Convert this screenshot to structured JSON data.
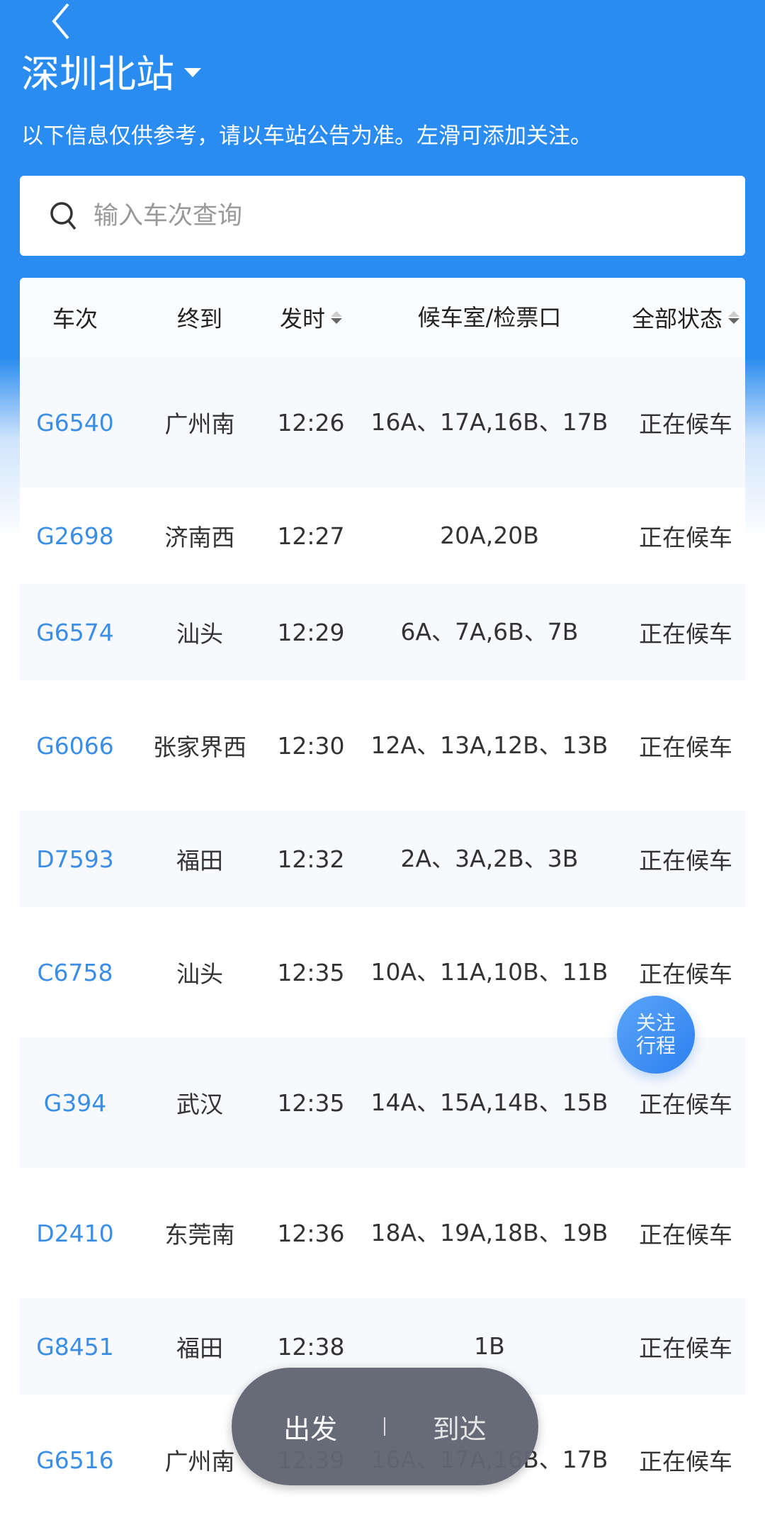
{
  "header": {
    "station": "深圳北站",
    "notice": "以下信息仅供参考，请以车站公告为准。左滑可添加关注。"
  },
  "search": {
    "placeholder": "输入车次查询"
  },
  "columns": [
    "车次",
    "终到",
    "发时",
    "候车室/检票口",
    "全部状态"
  ],
  "rows": [
    {
      "train": "G6540",
      "dest": "广州南",
      "time": "12:26",
      "gate": "16A、17A,16B、17B",
      "status": "正在候车"
    },
    {
      "train": "G2698",
      "dest": "济南西",
      "time": "12:27",
      "gate": "20A,20B",
      "status": "正在候车"
    },
    {
      "train": "G6574",
      "dest": "汕头",
      "time": "12:29",
      "gate": "6A、7A,6B、7B",
      "status": "正在候车"
    },
    {
      "train": "G6066",
      "dest": "张家界西",
      "time": "12:30",
      "gate": "12A、13A,12B、13B",
      "status": "正在候车"
    },
    {
      "train": "D7593",
      "dest": "福田",
      "time": "12:32",
      "gate": "2A、3A,2B、3B",
      "status": "正在候车"
    },
    {
      "train": "C6758",
      "dest": "汕头",
      "time": "12:35",
      "gate": "10A、11A,10B、11B",
      "status": "正在候车"
    },
    {
      "train": "G394",
      "dest": "武汉",
      "time": "12:35",
      "gate": "14A、15A,14B、15B",
      "status": "正在候车"
    },
    {
      "train": "D2410",
      "dest": "东莞南",
      "time": "12:36",
      "gate": "18A、19A,18B、19B",
      "status": "正在候车"
    },
    {
      "train": "G8451",
      "dest": "福田",
      "time": "12:38",
      "gate": "1B",
      "status": "正在候车"
    },
    {
      "train": "G6516",
      "dest": "广州南",
      "time": "12:39",
      "gate": "16A、17A,16B、17B",
      "status": "正在候车"
    }
  ],
  "fab": {
    "line1": "关注",
    "line2": "行程"
  },
  "toggle": {
    "depart": "出发",
    "arrive": "到达",
    "active": "出发"
  },
  "colors": {
    "primary": "#2a8cf0",
    "train_link": "#3a8ee6"
  }
}
